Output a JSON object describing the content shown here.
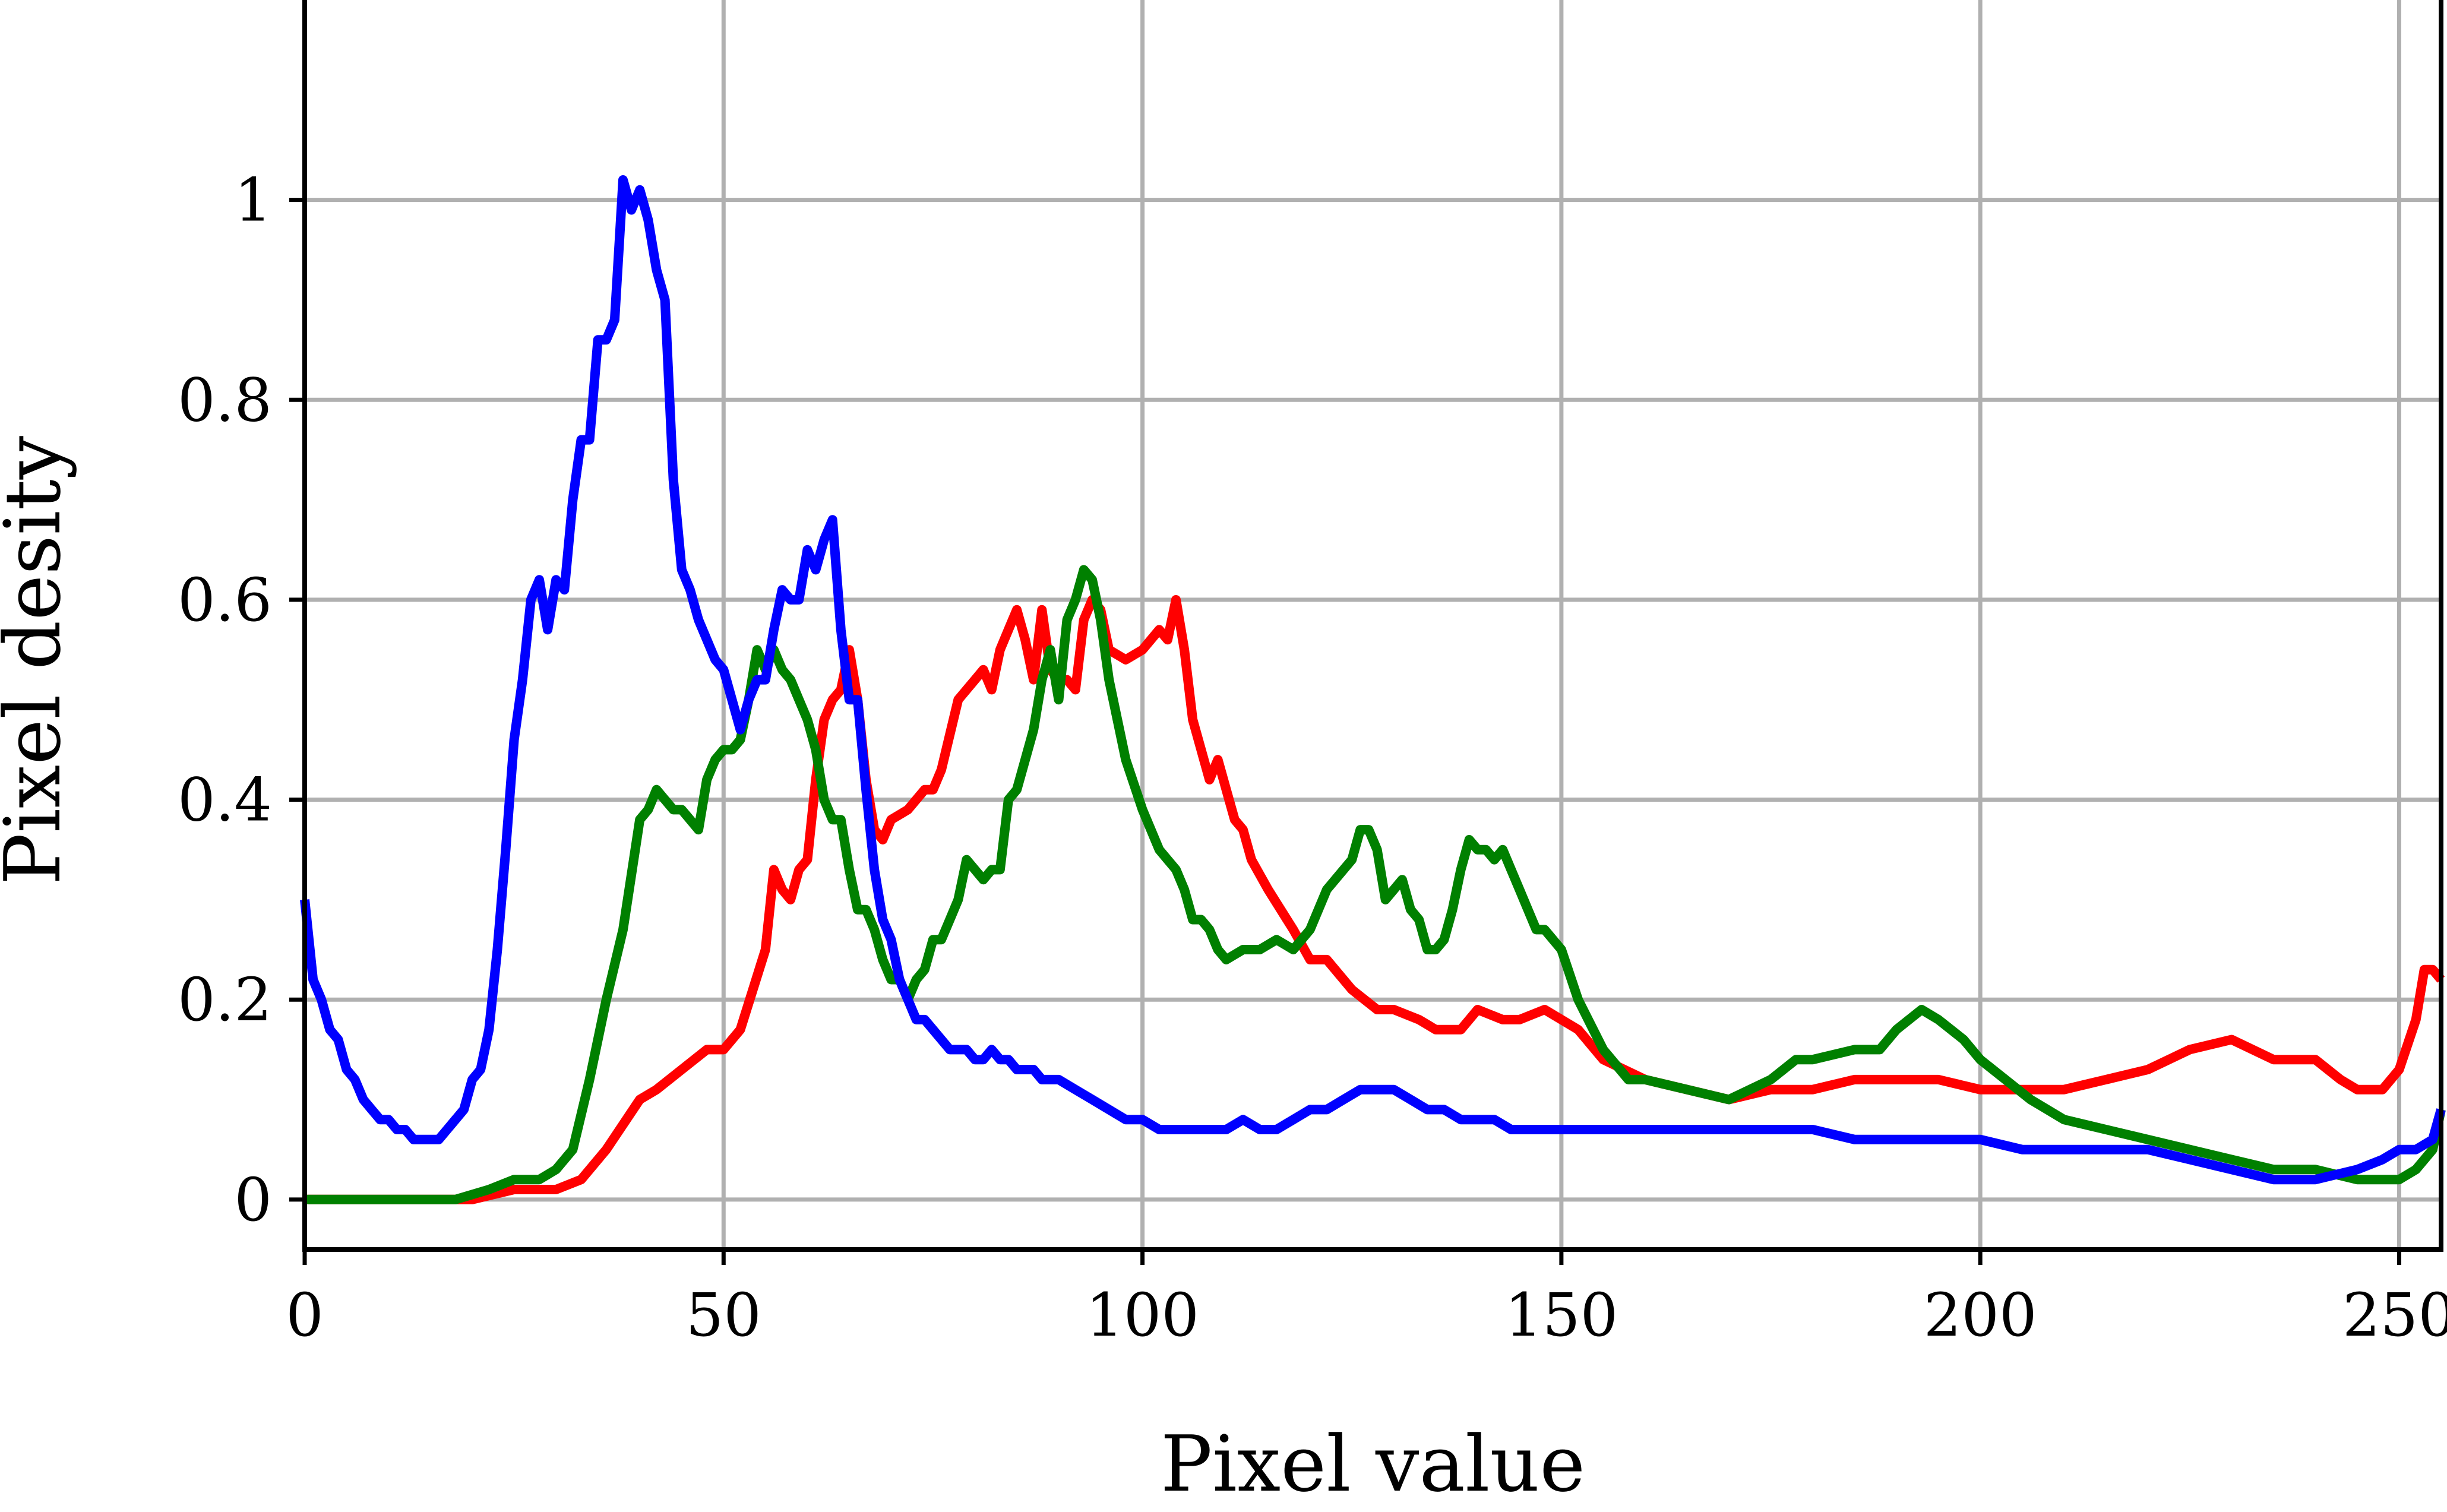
{
  "chart_data": {
    "type": "line",
    "xlabel": "Pixel value",
    "ylabel": "Pixel desity",
    "xlim": [
      0,
      255
    ],
    "ylim": [
      -0.05,
      1.2
    ],
    "xticks": [
      0,
      50,
      100,
      150,
      200,
      250
    ],
    "xtick_labels": [
      "0",
      "50",
      "100",
      "150",
      "200",
      "250"
    ],
    "yticks": [
      0,
      0.2,
      0.4,
      0.6,
      0.8,
      1
    ],
    "ytick_labels": [
      "0",
      "0.2",
      "0.4",
      "0.6",
      "0.8",
      "1"
    ],
    "grid": true,
    "series": [
      {
        "color": "#ff0000",
        "x": [
          0,
          10,
          20,
          25,
          30,
          33,
          36,
          40,
          42,
          45,
          48,
          50,
          52,
          55,
          56,
          57,
          58,
          59,
          60,
          61,
          62,
          63,
          64,
          65,
          66,
          67,
          68,
          69,
          70,
          72,
          74,
          75,
          76,
          78,
          80,
          81,
          82,
          83,
          84,
          85,
          86,
          87,
          88,
          89,
          90,
          91,
          92,
          93,
          94,
          95,
          96,
          98,
          100,
          102,
          103,
          104,
          105,
          106,
          107,
          108,
          109,
          110,
          111,
          112,
          113,
          115,
          118,
          120,
          122,
          125,
          128,
          130,
          133,
          135,
          138,
          140,
          143,
          145,
          148,
          150,
          152,
          155,
          160,
          165,
          170,
          175,
          180,
          185,
          190,
          195,
          200,
          205,
          210,
          215,
          220,
          225,
          230,
          235,
          240,
          243,
          245,
          248,
          250,
          252,
          253,
          254,
          255
        ],
        "y": [
          0,
          0,
          0,
          0.01,
          0.01,
          0.02,
          0.05,
          0.1,
          0.11,
          0.13,
          0.15,
          0.15,
          0.17,
          0.25,
          0.33,
          0.31,
          0.3,
          0.33,
          0.34,
          0.42,
          0.48,
          0.5,
          0.51,
          0.55,
          0.5,
          0.42,
          0.37,
          0.36,
          0.38,
          0.39,
          0.41,
          0.41,
          0.43,
          0.5,
          0.52,
          0.53,
          0.51,
          0.55,
          0.57,
          0.59,
          0.56,
          0.52,
          0.59,
          0.53,
          0.52,
          0.52,
          0.51,
          0.58,
          0.6,
          0.59,
          0.55,
          0.54,
          0.55,
          0.57,
          0.56,
          0.6,
          0.55,
          0.48,
          0.45,
          0.42,
          0.44,
          0.41,
          0.38,
          0.37,
          0.34,
          0.31,
          0.27,
          0.24,
          0.24,
          0.21,
          0.19,
          0.19,
          0.18,
          0.17,
          0.17,
          0.19,
          0.18,
          0.18,
          0.19,
          0.18,
          0.17,
          0.14,
          0.12,
          0.11,
          0.1,
          0.11,
          0.11,
          0.12,
          0.12,
          0.12,
          0.11,
          0.11,
          0.11,
          0.12,
          0.13,
          0.15,
          0.16,
          0.14,
          0.14,
          0.12,
          0.11,
          0.11,
          0.13,
          0.18,
          0.23,
          0.23,
          0.22
        ]
      },
      {
        "color": "#008000",
        "x": [
          0,
          10,
          18,
          22,
          25,
          28,
          30,
          32,
          34,
          36,
          38,
          40,
          41,
          42,
          43,
          44,
          45,
          46,
          47,
          48,
          49,
          50,
          51,
          52,
          53,
          54,
          55,
          56,
          57,
          58,
          59,
          60,
          61,
          62,
          63,
          64,
          65,
          66,
          67,
          68,
          69,
          70,
          71,
          72,
          73,
          74,
          75,
          76,
          77,
          78,
          79,
          80,
          81,
          82,
          83,
          84,
          85,
          86,
          87,
          88,
          89,
          90,
          91,
          92,
          93,
          94,
          95,
          96,
          97,
          98,
          100,
          102,
          103,
          104,
          105,
          106,
          107,
          108,
          109,
          110,
          112,
          114,
          116,
          118,
          120,
          122,
          124,
          125,
          126,
          127,
          128,
          129,
          130,
          131,
          132,
          133,
          134,
          135,
          136,
          137,
          138,
          139,
          140,
          141,
          142,
          143,
          144,
          145,
          146,
          147,
          148,
          150,
          152,
          155,
          158,
          160,
          165,
          170,
          175,
          178,
          180,
          185,
          188,
          190,
          193,
          195,
          198,
          200,
          203,
          206,
          210,
          215,
          220,
          225,
          230,
          235,
          240,
          245,
          248,
          250,
          252,
          254,
          255
        ],
        "y": [
          0,
          0,
          0,
          0.01,
          0.02,
          0.02,
          0.03,
          0.05,
          0.12,
          0.2,
          0.27,
          0.38,
          0.39,
          0.41,
          0.4,
          0.39,
          0.39,
          0.38,
          0.37,
          0.42,
          0.44,
          0.45,
          0.45,
          0.46,
          0.5,
          0.55,
          0.53,
          0.55,
          0.53,
          0.52,
          0.5,
          0.48,
          0.45,
          0.4,
          0.38,
          0.38,
          0.33,
          0.29,
          0.29,
          0.27,
          0.24,
          0.22,
          0.22,
          0.2,
          0.22,
          0.23,
          0.26,
          0.26,
          0.28,
          0.3,
          0.34,
          0.33,
          0.32,
          0.33,
          0.33,
          0.4,
          0.41,
          0.44,
          0.47,
          0.52,
          0.55,
          0.5,
          0.58,
          0.6,
          0.63,
          0.62,
          0.58,
          0.52,
          0.48,
          0.44,
          0.39,
          0.35,
          0.34,
          0.33,
          0.31,
          0.28,
          0.28,
          0.27,
          0.25,
          0.24,
          0.25,
          0.25,
          0.26,
          0.25,
          0.27,
          0.31,
          0.33,
          0.34,
          0.37,
          0.37,
          0.35,
          0.3,
          0.31,
          0.32,
          0.29,
          0.28,
          0.25,
          0.25,
          0.26,
          0.29,
          0.33,
          0.36,
          0.35,
          0.35,
          0.34,
          0.35,
          0.33,
          0.31,
          0.29,
          0.27,
          0.27,
          0.25,
          0.2,
          0.15,
          0.12,
          0.12,
          0.11,
          0.1,
          0.12,
          0.14,
          0.14,
          0.15,
          0.15,
          0.17,
          0.19,
          0.18,
          0.16,
          0.14,
          0.12,
          0.1,
          0.08,
          0.07,
          0.06,
          0.05,
          0.04,
          0.03,
          0.03,
          0.02,
          0.02,
          0.02,
          0.03,
          0.05,
          0.09
        ]
      },
      {
        "color": "#0000ff",
        "x": [
          0,
          1,
          2,
          3,
          4,
          5,
          6,
          7,
          8,
          9,
          10,
          11,
          12,
          13,
          14,
          15,
          16,
          17,
          18,
          19,
          20,
          21,
          22,
          23,
          24,
          25,
          26,
          27,
          28,
          29,
          30,
          31,
          32,
          33,
          34,
          35,
          36,
          37,
          38,
          39,
          40,
          41,
          42,
          43,
          44,
          45,
          46,
          47,
          48,
          49,
          50,
          51,
          52,
          53,
          54,
          55,
          56,
          57,
          58,
          59,
          60,
          61,
          62,
          63,
          64,
          65,
          66,
          67,
          68,
          69,
          70,
          71,
          72,
          73,
          74,
          75,
          76,
          77,
          78,
          79,
          80,
          81,
          82,
          83,
          84,
          85,
          86,
          87,
          88,
          90,
          92,
          94,
          96,
          98,
          100,
          102,
          104,
          106,
          108,
          110,
          112,
          114,
          116,
          118,
          120,
          122,
          124,
          126,
          128,
          130,
          132,
          134,
          136,
          138,
          140,
          142,
          144,
          146,
          148,
          150,
          152,
          155,
          160,
          165,
          170,
          175,
          180,
          185,
          190,
          195,
          200,
          205,
          210,
          215,
          220,
          225,
          230,
          235,
          240,
          245,
          248,
          250,
          252,
          254,
          255
        ],
        "y": [
          0.3,
          0.22,
          0.2,
          0.17,
          0.16,
          0.13,
          0.12,
          0.1,
          0.09,
          0.08,
          0.08,
          0.07,
          0.07,
          0.06,
          0.06,
          0.06,
          0.06,
          0.07,
          0.08,
          0.09,
          0.12,
          0.13,
          0.17,
          0.25,
          0.35,
          0.46,
          0.52,
          0.6,
          0.62,
          0.57,
          0.62,
          0.61,
          0.7,
          0.76,
          0.76,
          0.86,
          0.86,
          0.88,
          1.02,
          0.99,
          1.01,
          0.98,
          0.93,
          0.9,
          0.72,
          0.63,
          0.61,
          0.58,
          0.56,
          0.54,
          0.53,
          0.5,
          0.47,
          0.5,
          0.52,
          0.52,
          0.57,
          0.61,
          0.6,
          0.6,
          0.65,
          0.63,
          0.66,
          0.68,
          0.57,
          0.5,
          0.5,
          0.41,
          0.33,
          0.28,
          0.26,
          0.22,
          0.2,
          0.18,
          0.18,
          0.17,
          0.16,
          0.15,
          0.15,
          0.15,
          0.14,
          0.14,
          0.15,
          0.14,
          0.14,
          0.13,
          0.13,
          0.13,
          0.12,
          0.12,
          0.11,
          0.1,
          0.09,
          0.08,
          0.08,
          0.07,
          0.07,
          0.07,
          0.07,
          0.07,
          0.08,
          0.07,
          0.07,
          0.08,
          0.09,
          0.09,
          0.1,
          0.11,
          0.11,
          0.11,
          0.1,
          0.09,
          0.09,
          0.08,
          0.08,
          0.08,
          0.07,
          0.07,
          0.07,
          0.07,
          0.07,
          0.07,
          0.07,
          0.07,
          0.07,
          0.07,
          0.07,
          0.06,
          0.06,
          0.06,
          0.06,
          0.05,
          0.05,
          0.05,
          0.05,
          0.04,
          0.03,
          0.02,
          0.02,
          0.03,
          0.04,
          0.05,
          0.05,
          0.06,
          0.09
        ]
      }
    ]
  }
}
